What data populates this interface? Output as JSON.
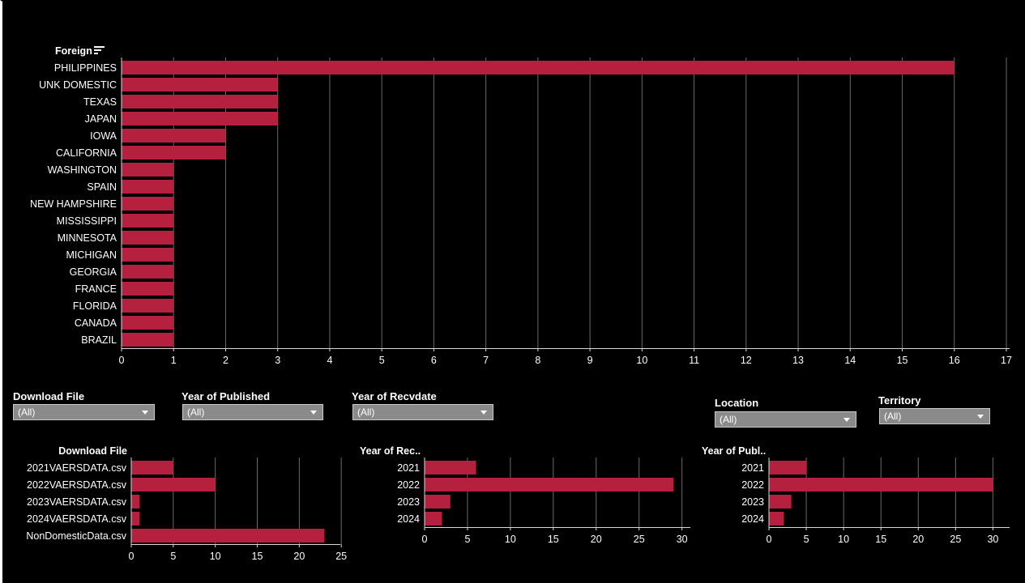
{
  "colors": {
    "background": "#000000",
    "bar": "#b5203f",
    "grid": "#6a6a6a",
    "axis": "#d9d9d9",
    "text": "#ffffff"
  },
  "chart_data": [
    {
      "type": "bar",
      "orientation": "horizontal",
      "header": "Foreign",
      "categories": [
        "PHILIPPINES",
        "UNK DOMESTIC",
        "TEXAS",
        "JAPAN",
        "IOWA",
        "CALIFORNIA",
        "WASHINGTON",
        "SPAIN",
        "NEW HAMPSHIRE",
        "MISSISSIPPI",
        "MINNESOTA",
        "MICHIGAN",
        "GEORGIA",
        "FRANCE",
        "FLORIDA",
        "CANADA",
        "BRAZIL"
      ],
      "values": [
        16,
        3,
        3,
        3,
        2,
        2,
        1,
        1,
        1,
        1,
        1,
        1,
        1,
        1,
        1,
        1,
        1
      ],
      "xlim": [
        0,
        17
      ],
      "ticks": [
        0,
        1,
        2,
        3,
        4,
        5,
        6,
        7,
        8,
        9,
        10,
        11,
        12,
        13,
        14,
        15,
        16,
        17
      ],
      "grid": true
    },
    {
      "type": "bar",
      "orientation": "horizontal",
      "header": "Download File",
      "categories": [
        "2021VAERSDATA.csv",
        "2022VAERSDATA.csv",
        "2023VAERSDATA.csv",
        "2024VAERSDATA.csv",
        "NonDomesticData.csv"
      ],
      "values": [
        5,
        10,
        1,
        1,
        23
      ],
      "xlim": [
        0,
        24.5
      ],
      "ticks": [
        0,
        5,
        10,
        15,
        20,
        25
      ],
      "grid": true
    },
    {
      "type": "bar",
      "orientation": "horizontal",
      "header": "Year of Rec..",
      "categories": [
        "2021",
        "2022",
        "2023",
        "2024"
      ],
      "values": [
        6,
        29,
        3,
        2
      ],
      "xlim": [
        0,
        30.6
      ],
      "ticks": [
        0,
        5,
        10,
        15,
        20,
        25,
        30
      ],
      "grid": true
    },
    {
      "type": "bar",
      "orientation": "horizontal",
      "header": "Year of Publ..",
      "categories": [
        "2021",
        "2022",
        "2023",
        "2024"
      ],
      "values": [
        5,
        30,
        3,
        2
      ],
      "xlim": [
        0,
        31.8
      ],
      "ticks": [
        0,
        5,
        10,
        15,
        20,
        25,
        30
      ],
      "grid": true
    }
  ],
  "filters": {
    "download_file": {
      "label": "Download File",
      "value": "(All)"
    },
    "year_published": {
      "label": "Year of Published",
      "value": "(All)"
    },
    "year_recvdate": {
      "label": "Year of Recvdate",
      "value": "(All)"
    },
    "location": {
      "label": "Location",
      "value": "(All)"
    },
    "territory": {
      "label": "Territory",
      "value": "(All)"
    }
  }
}
